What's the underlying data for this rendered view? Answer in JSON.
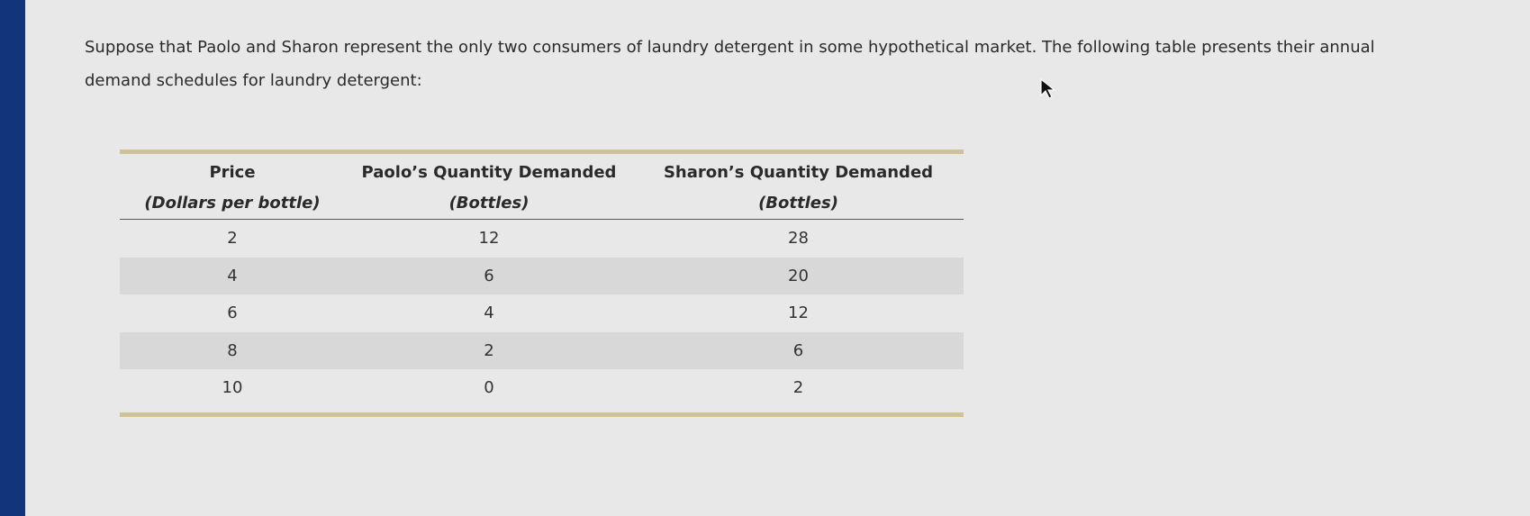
{
  "intro_text": "Suppose that Paolo and Sharon represent the only two consumers of laundry detergent in some hypothetical market. The following table presents their annual demand schedules for laundry detergent:",
  "table": {
    "headers": [
      {
        "title": "Price",
        "subtitle": "(Dollars per bottle)"
      },
      {
        "title": "Paolo’s Quantity Demanded",
        "subtitle": "(Bottles)"
      },
      {
        "title": "Sharon’s Quantity Demanded",
        "subtitle": "(Bottles)"
      }
    ],
    "rows": [
      [
        "2",
        "12",
        "28"
      ],
      [
        "4",
        "6",
        "20"
      ],
      [
        "6",
        "4",
        "12"
      ],
      [
        "8",
        "2",
        "6"
      ],
      [
        "10",
        "0",
        "2"
      ]
    ]
  },
  "colors": {
    "left_bar": "#11347a",
    "table_rule": "#cfc396",
    "alt_row": "#d8d8d8"
  }
}
